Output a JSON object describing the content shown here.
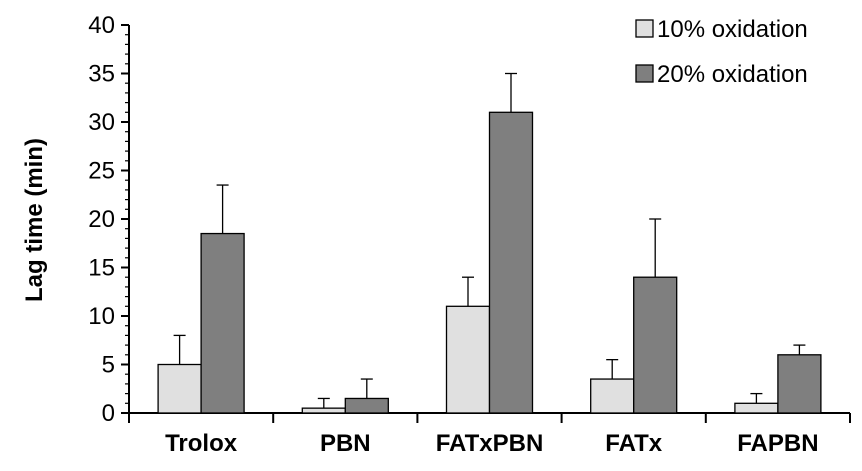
{
  "chart_data": {
    "type": "bar",
    "title": "",
    "xlabel": "",
    "ylabel": "Lag time (min)",
    "ylim": [
      0,
      40
    ],
    "yticks": [
      0,
      5,
      10,
      15,
      20,
      25,
      30,
      35,
      40
    ],
    "categories": [
      "Trolox",
      "PBN",
      "FATxPBN",
      "FATx",
      "FAPBN"
    ],
    "series": [
      {
        "name": "10% oxidation",
        "color": "#e0e0e0",
        "values": [
          5,
          0.5,
          11,
          3.5,
          1
        ],
        "errors": [
          3,
          1,
          3,
          2,
          1
        ]
      },
      {
        "name": "20% oxidation",
        "color": "#7f7f7f",
        "values": [
          18.5,
          1.5,
          31,
          14,
          6
        ],
        "errors": [
          5,
          2,
          4,
          6,
          1
        ]
      }
    ],
    "error_bars": "positive",
    "grid": false,
    "legend_position": "top-right"
  }
}
